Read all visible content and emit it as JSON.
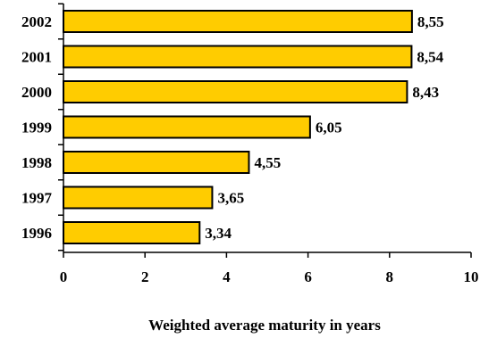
{
  "chart_data": {
    "type": "bar",
    "orientation": "horizontal",
    "categories": [
      "2002",
      "2001",
      "2000",
      "1999",
      "1998",
      "1997",
      "1996"
    ],
    "values": [
      8.55,
      8.54,
      8.43,
      6.05,
      4.55,
      3.65,
      3.34
    ],
    "value_labels": [
      "8,55",
      "8,54",
      "8,43",
      "6,05",
      "4,55",
      "3,65",
      "3,34"
    ],
    "x_ticks": [
      "0",
      "2",
      "4",
      "6",
      "8",
      "10"
    ],
    "xlim": [
      0,
      10
    ],
    "xlabel": "Weighted average maturity in years",
    "ylabel": "",
    "grid": false,
    "legend": "none",
    "colors": {
      "bar_fill": "#FFCC00",
      "bar_stroke": "#000000",
      "axis": "#000000"
    }
  }
}
